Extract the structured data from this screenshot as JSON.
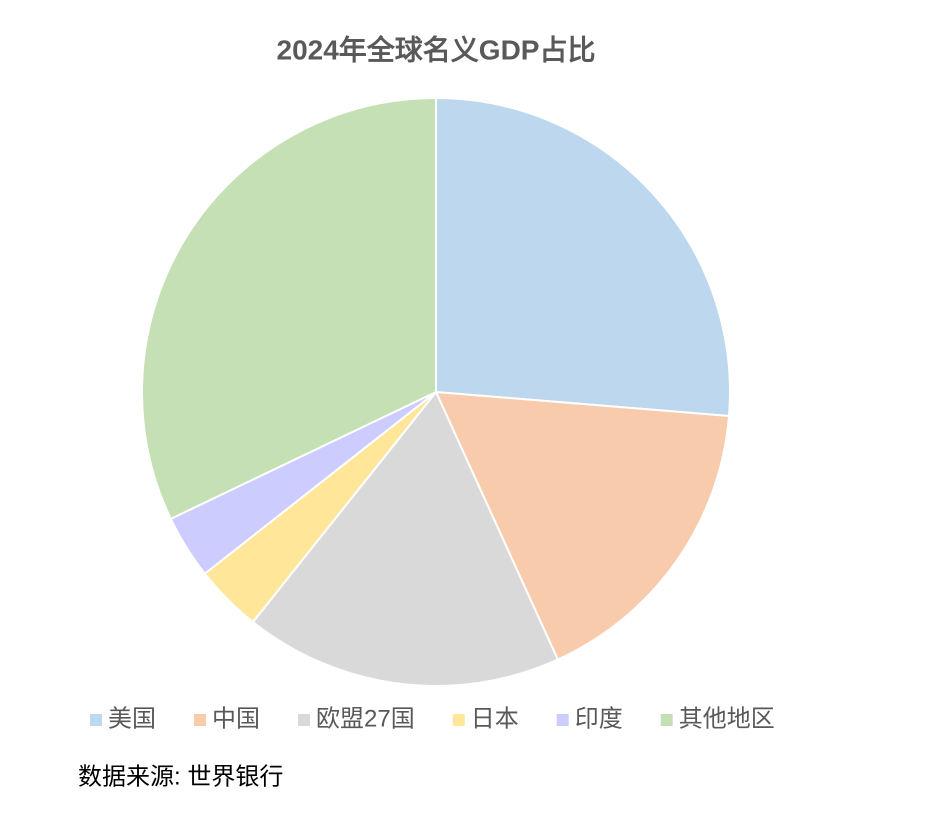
{
  "chart_data": {
    "type": "pie",
    "title": "2024年全球名义GDP占比",
    "categories": [
      "美国",
      "中国",
      "欧盟27国",
      "日本",
      "印度",
      "其他地区"
    ],
    "values": [
      26.3,
      16.9,
      17.5,
      3.7,
      3.5,
      32.1
    ],
    "colors": [
      "#bdd7ee",
      "#f8cbad",
      "#d9d9d9",
      "#ffe699",
      "#ccccff",
      "#c5e0b4"
    ],
    "legend": "bottom",
    "source": "数据来源: 世界银行"
  }
}
